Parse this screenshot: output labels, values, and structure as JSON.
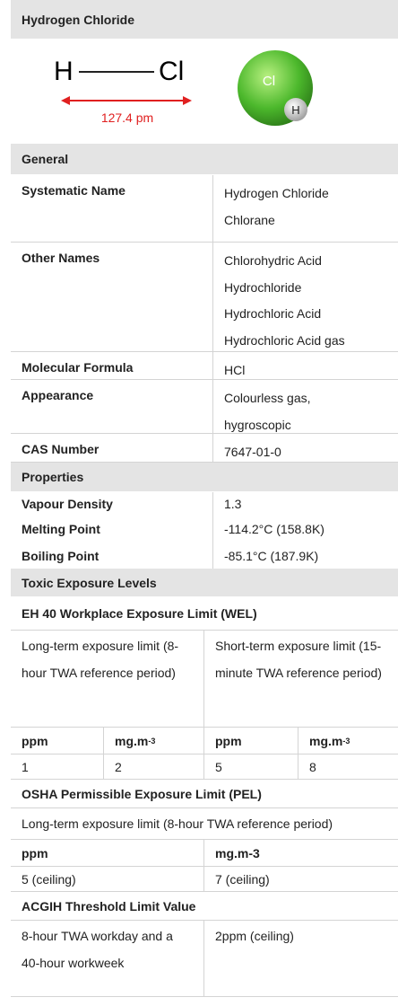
{
  "title": "Hydrogen Chloride",
  "diagram": {
    "atom1": "H",
    "atom2": "Cl",
    "bond_length": "127.4 pm",
    "model_atom1": "Cl",
    "model_atom2": "H"
  },
  "general": {
    "heading": "General",
    "rows": [
      {
        "label": "Systematic Name",
        "values": [
          "Hydrogen Chloride",
          "Chlorane"
        ]
      },
      {
        "label": "Other Names",
        "values": [
          "Chlorohydric Acid",
          "Hydrochloride",
          "Hydrochloric Acid",
          "Hydrochloric Acid gas"
        ]
      },
      {
        "label": "Molecular Formula",
        "values": [
          "HCl"
        ]
      },
      {
        "label": "Appearance",
        "values": [
          "Colourless gas, hygroscopic"
        ]
      },
      {
        "label": "CAS Number",
        "values": [
          "7647-01-0"
        ]
      }
    ]
  },
  "properties": {
    "heading": "Properties",
    "rows": [
      {
        "label": "Vapour Density",
        "value": "1.3"
      },
      {
        "label": "Melting Point",
        "value": "-114.2°C (158.8K)"
      },
      {
        "label": "Boiling Point",
        "value": "-85.1°C (187.9K)"
      }
    ]
  },
  "toxic": {
    "heading": "Toxic Exposure Levels",
    "eh40": {
      "heading": "EH 40 Workplace Exposure Limit (WEL)",
      "long_term": "Long-term exposure limit (8-hour TWA reference period)",
      "short_term": "Short-term exposure limit (15-minute TWA reference period)",
      "units": [
        {
          "base": "ppm"
        },
        {
          "base": "mg.m",
          "sup": "-3"
        },
        {
          "base": "ppm"
        },
        {
          "base": "mg.m",
          "sup": "-3"
        }
      ],
      "values": [
        "1",
        "2",
        "5",
        "8"
      ]
    },
    "osha": {
      "heading": "OSHA Permissible Exposure Limit (PEL)",
      "description": "Long-term exposure limit (8-hour TWA reference period)",
      "units": [
        "ppm",
        "mg.m-3"
      ],
      "values": [
        "5 (ceiling)",
        "7 (ceiling)"
      ]
    },
    "acgih": {
      "heading": "ACGIH Threshold Limit Value",
      "description": "8-hour TWA workday and a 40-hour workweek",
      "value": "2ppm (ceiling)"
    }
  }
}
